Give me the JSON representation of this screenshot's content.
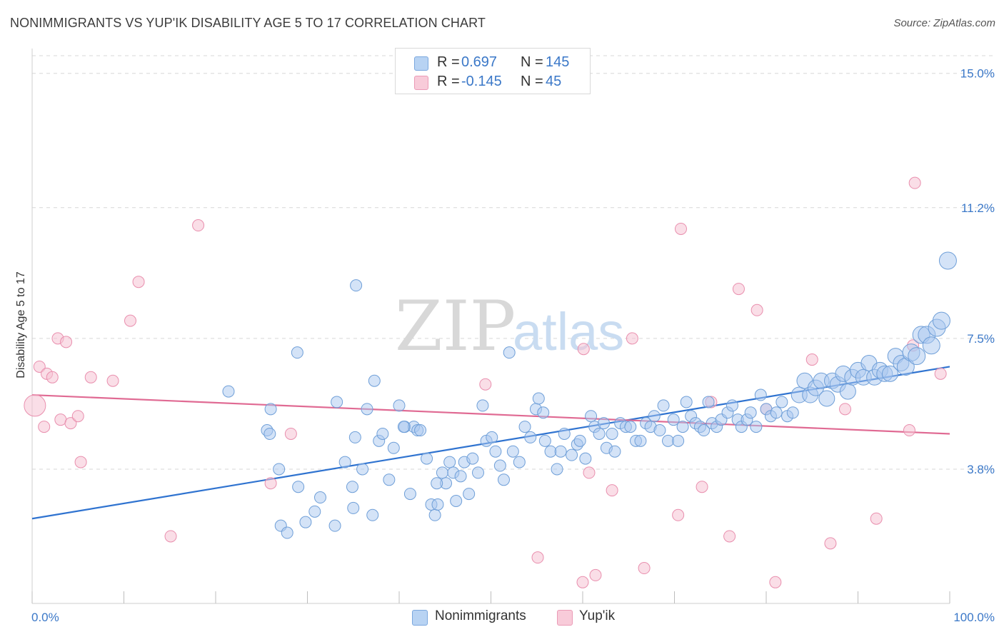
{
  "title": "NONIMMIGRANTS VS YUP'IK DISABILITY AGE 5 TO 17 CORRELATION CHART",
  "source": "Source: ZipAtlas.com",
  "watermark": {
    "zip": "ZIP",
    "atlas": "atlas"
  },
  "colors": {
    "blue_fill": "#a9c8ef",
    "blue_stroke": "#6f9fd8",
    "blue_line": "#2f73d0",
    "pink_fill": "#f6c3d3",
    "pink_stroke": "#e98fae",
    "pink_line": "#e06a93",
    "grid": "#d7d7d7",
    "tick_label": "#3b78c8"
  },
  "legend": {
    "rows": [
      {
        "r_label": "R =",
        "r_value": "0.697",
        "n_label": "N =",
        "n_value": "145"
      },
      {
        "r_label": "R =",
        "r_value": "-0.145",
        "n_label": "N =",
        "n_value": "45"
      }
    ]
  },
  "bottom_legend": {
    "series1": "Nonimmigrants",
    "series2": "Yup'ik"
  },
  "chart_data": {
    "type": "scatter",
    "title": "NONIMMIGRANTS VS YUP'IK DISABILITY AGE 5 TO 17 CORRELATION CHART",
    "xlabel": "",
    "ylabel": "Disability Age 5 to 17",
    "xlim": [
      0,
      100
    ],
    "ylim": [
      0,
      15.5
    ],
    "x_tick_labels": [
      "0.0%",
      "100.0%"
    ],
    "y_ticks": [
      3.8,
      7.5,
      11.2,
      15.0
    ],
    "y_tick_labels": [
      "3.8%",
      "7.5%",
      "11.2%",
      "15.0%"
    ],
    "grid": "horizontal dashed",
    "legend_position": "top-center",
    "series": [
      {
        "name": "Nonimmigrants",
        "r": 0.697,
        "n": 145,
        "trend": {
          "x": [
            0,
            100
          ],
          "y": [
            2.4,
            6.7
          ]
        },
        "points": [
          [
            21.4,
            6.0
          ],
          [
            25.6,
            4.9
          ],
          [
            25.9,
            4.8
          ],
          [
            26.0,
            5.5
          ],
          [
            26.9,
            3.8
          ],
          [
            27.1,
            2.2
          ],
          [
            27.8,
            2.0
          ],
          [
            28.9,
            7.1
          ],
          [
            29.0,
            3.3
          ],
          [
            29.8,
            2.3
          ],
          [
            30.8,
            2.6
          ],
          [
            31.4,
            3.0
          ],
          [
            33.0,
            2.2
          ],
          [
            34.1,
            4.0
          ],
          [
            35.0,
            2.7
          ],
          [
            35.2,
            4.7
          ],
          [
            36.0,
            3.8
          ],
          [
            36.5,
            5.5
          ],
          [
            37.1,
            2.5
          ],
          [
            37.8,
            4.6
          ],
          [
            38.2,
            4.8
          ],
          [
            38.9,
            3.5
          ],
          [
            39.4,
            4.4
          ],
          [
            40.0,
            5.6
          ],
          [
            40.6,
            5.0
          ],
          [
            41.2,
            3.1
          ],
          [
            41.6,
            5.0
          ],
          [
            42.0,
            4.9
          ],
          [
            42.3,
            4.9
          ],
          [
            43.5,
            2.8
          ],
          [
            43.9,
            2.5
          ],
          [
            44.2,
            2.8
          ],
          [
            44.7,
            3.7
          ],
          [
            45.1,
            3.4
          ],
          [
            45.5,
            4.0
          ],
          [
            45.9,
            3.7
          ],
          [
            46.2,
            2.9
          ],
          [
            46.7,
            3.6
          ],
          [
            47.1,
            4.0
          ],
          [
            47.6,
            3.1
          ],
          [
            48.0,
            4.1
          ],
          [
            48.6,
            3.7
          ],
          [
            49.1,
            5.6
          ],
          [
            49.5,
            4.6
          ],
          [
            50.1,
            4.7
          ],
          [
            50.5,
            4.3
          ],
          [
            51.0,
            3.9
          ],
          [
            51.4,
            3.5
          ],
          [
            52.0,
            7.1
          ],
          [
            52.4,
            4.3
          ],
          [
            53.1,
            4.0
          ],
          [
            53.7,
            5.0
          ],
          [
            54.3,
            4.7
          ],
          [
            54.9,
            5.5
          ],
          [
            55.2,
            5.8
          ],
          [
            55.9,
            4.6
          ],
          [
            56.5,
            4.3
          ],
          [
            57.2,
            3.8
          ],
          [
            57.6,
            4.3
          ],
          [
            58.0,
            4.8
          ],
          [
            58.8,
            4.2
          ],
          [
            59.4,
            4.5
          ],
          [
            59.7,
            4.6
          ],
          [
            60.3,
            4.1
          ],
          [
            60.9,
            5.3
          ],
          [
            61.3,
            5.0
          ],
          [
            61.8,
            4.8
          ],
          [
            62.3,
            5.1
          ],
          [
            62.6,
            4.4
          ],
          [
            63.2,
            4.8
          ],
          [
            63.5,
            4.3
          ],
          [
            64.1,
            5.1
          ],
          [
            64.7,
            5.0
          ],
          [
            65.2,
            5.0
          ],
          [
            65.8,
            4.6
          ],
          [
            66.3,
            4.6
          ],
          [
            66.9,
            5.1
          ],
          [
            67.4,
            5.0
          ],
          [
            67.8,
            5.3
          ],
          [
            68.4,
            4.9
          ],
          [
            68.8,
            5.6
          ],
          [
            69.3,
            4.6
          ],
          [
            69.9,
            5.2
          ],
          [
            70.4,
            4.6
          ],
          [
            70.9,
            5.0
          ],
          [
            71.3,
            5.7
          ],
          [
            71.8,
            5.3
          ],
          [
            72.3,
            5.1
          ],
          [
            72.8,
            5.0
          ],
          [
            73.2,
            4.9
          ],
          [
            73.7,
            5.7
          ],
          [
            74.1,
            5.1
          ],
          [
            74.6,
            5.0
          ],
          [
            75.1,
            5.2
          ],
          [
            75.8,
            5.4
          ],
          [
            76.3,
            5.6
          ],
          [
            76.9,
            5.2
          ],
          [
            77.3,
            5.0
          ],
          [
            77.9,
            5.2
          ],
          [
            78.3,
            5.4
          ],
          [
            78.9,
            5.0
          ],
          [
            79.4,
            5.9
          ],
          [
            80.0,
            5.5
          ],
          [
            80.5,
            5.3
          ],
          [
            81.1,
            5.4
          ],
          [
            81.7,
            5.7
          ],
          [
            82.3,
            5.3
          ],
          [
            82.9,
            5.4
          ],
          [
            83.6,
            5.9
          ],
          [
            84.2,
            6.3
          ],
          [
            84.8,
            5.9
          ],
          [
            85.4,
            6.1
          ],
          [
            86.0,
            6.3
          ],
          [
            86.6,
            5.8
          ],
          [
            87.2,
            6.3
          ],
          [
            87.8,
            6.2
          ],
          [
            88.4,
            6.5
          ],
          [
            88.9,
            6.0
          ],
          [
            89.4,
            6.4
          ],
          [
            90.0,
            6.6
          ],
          [
            90.6,
            6.4
          ],
          [
            91.2,
            6.8
          ],
          [
            91.8,
            6.4
          ],
          [
            92.4,
            6.6
          ],
          [
            92.9,
            6.5
          ],
          [
            93.5,
            6.5
          ],
          [
            94.1,
            7.0
          ],
          [
            94.7,
            6.8
          ],
          [
            95.2,
            6.7
          ],
          [
            95.8,
            7.1
          ],
          [
            96.4,
            7.0
          ],
          [
            96.9,
            7.6
          ],
          [
            97.5,
            7.6
          ],
          [
            98.0,
            7.3
          ],
          [
            98.6,
            7.8
          ],
          [
            99.1,
            8.0
          ],
          [
            99.8,
            9.7
          ],
          [
            35.3,
            9.0
          ],
          [
            40.5,
            5.0
          ],
          [
            55.7,
            5.4
          ],
          [
            37.3,
            6.3
          ],
          [
            43.0,
            4.1
          ],
          [
            33.2,
            5.7
          ],
          [
            34.9,
            3.3
          ],
          [
            44.1,
            3.4
          ]
        ]
      },
      {
        "name": "Yup'ik",
        "r": -0.145,
        "n": 45,
        "trend": {
          "x": [
            0,
            100
          ],
          "y": [
            5.9,
            4.8
          ]
        },
        "points": [
          [
            0.3,
            5.6
          ],
          [
            0.8,
            6.7
          ],
          [
            1.3,
            5.0
          ],
          [
            1.6,
            6.5
          ],
          [
            2.2,
            6.4
          ],
          [
            2.8,
            7.5
          ],
          [
            3.1,
            5.2
          ],
          [
            3.7,
            7.4
          ],
          [
            4.2,
            5.1
          ],
          [
            5.0,
            5.3
          ],
          [
            5.3,
            4.0
          ],
          [
            6.4,
            6.4
          ],
          [
            8.8,
            6.3
          ],
          [
            10.7,
            8.0
          ],
          [
            11.6,
            9.1
          ],
          [
            15.1,
            1.9
          ],
          [
            18.1,
            10.7
          ],
          [
            26.0,
            3.4
          ],
          [
            28.2,
            4.8
          ],
          [
            49.4,
            6.2
          ],
          [
            55.1,
            1.3
          ],
          [
            60.0,
            0.6
          ],
          [
            60.1,
            7.2
          ],
          [
            60.7,
            3.7
          ],
          [
            61.4,
            0.8
          ],
          [
            63.2,
            3.2
          ],
          [
            65.4,
            7.5
          ],
          [
            66.7,
            1.0
          ],
          [
            70.4,
            2.5
          ],
          [
            70.7,
            10.6
          ],
          [
            73.0,
            3.3
          ],
          [
            74.0,
            5.7
          ],
          [
            76.0,
            1.9
          ],
          [
            77.0,
            8.9
          ],
          [
            79.0,
            8.3
          ],
          [
            80.0,
            5.5
          ],
          [
            81.0,
            0.6
          ],
          [
            85.0,
            6.9
          ],
          [
            87.0,
            1.7
          ],
          [
            88.6,
            5.5
          ],
          [
            92.0,
            2.4
          ],
          [
            95.6,
            4.9
          ],
          [
            96.2,
            11.9
          ],
          [
            96.0,
            7.3
          ],
          [
            99.0,
            6.5
          ]
        ]
      }
    ]
  }
}
